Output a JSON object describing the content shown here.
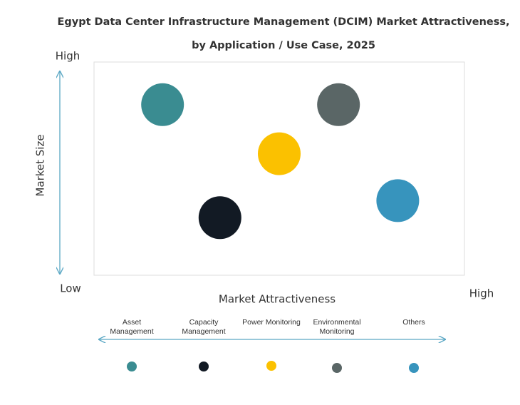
{
  "chart_data": {
    "type": "scatter",
    "title": [
      "Egypt Data Center Infrastructure  Management (DCIM) Market Attractiveness,",
      "by Application / Use Case, 2025"
    ],
    "x_axis": {
      "label": "Market Attractiveness",
      "high": "High"
    },
    "y_axis": {
      "label": "Market Size",
      "high": "High",
      "low": "Low"
    },
    "xlim": [
      0,
      10
    ],
    "ylim": [
      0,
      10
    ],
    "series": [
      {
        "name": "Asset Management",
        "color": "#3a8c91",
        "x": [
          1.85
        ],
        "values": [
          8.0
        ]
      },
      {
        "name": "Capacity Management",
        "color": "#121a24",
        "x": [
          3.4
        ],
        "values": [
          2.7
        ]
      },
      {
        "name": "Power Monitoring",
        "color": "#fbc100",
        "x": [
          5.0
        ],
        "values": [
          5.7
        ]
      },
      {
        "name": "Environmental Monitoring",
        "color": "#5a6666",
        "x": [
          6.6
        ],
        "values": [
          8.0
        ]
      },
      {
        "name": "Others",
        "color": "#3794bd",
        "x": [
          8.2
        ],
        "values": [
          3.5
        ]
      }
    ]
  }
}
